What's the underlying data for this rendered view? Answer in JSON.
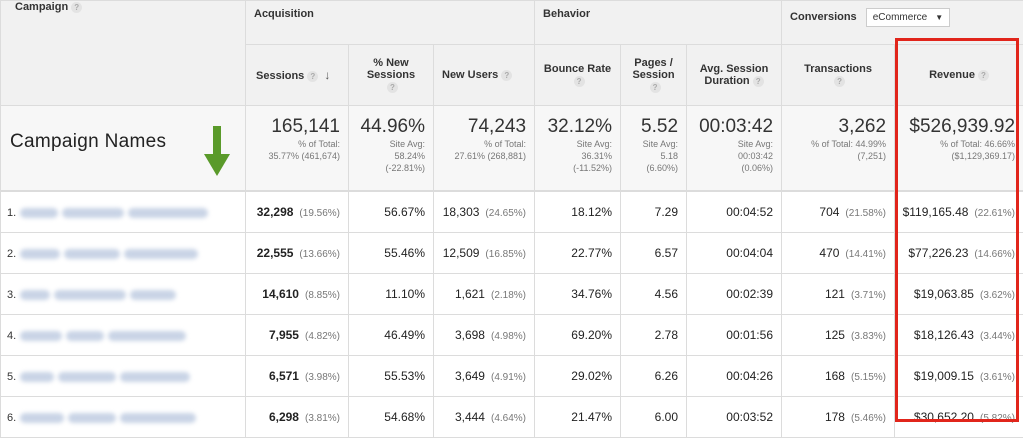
{
  "groups": {
    "acquisition": "Acquisition",
    "behavior": "Behavior",
    "conversions": "Conversions",
    "conversions_select": "eCommerce"
  },
  "headers": {
    "campaign": "Campaign",
    "sessions": "Sessions",
    "pct_new_sessions_1": "% New",
    "pct_new_sessions_2": "Sessions",
    "new_users": "New Users",
    "bounce_rate": "Bounce Rate",
    "pages_session_1": "Pages /",
    "pages_session_2": "Session",
    "avg_duration_1": "Avg. Session",
    "avg_duration_2": "Duration",
    "transactions": "Transactions",
    "revenue": "Revenue"
  },
  "annotation": "Campaign Names",
  "totals": {
    "sessions": {
      "value": "165,141",
      "sub1": "% of Total:",
      "sub2": "35.77% (461,674)"
    },
    "pct_new": {
      "value": "44.96%",
      "sub1": "Site Avg:",
      "sub2": "58.24%",
      "sub3": "(-22.81%)"
    },
    "new_users": {
      "value": "74,243",
      "sub1": "% of Total:",
      "sub2": "27.61% (268,881)"
    },
    "bounce": {
      "value": "32.12%",
      "sub1": "Site Avg:",
      "sub2": "36.31%",
      "sub3": "(-11.52%)"
    },
    "pages": {
      "value": "5.52",
      "sub1": "Site Avg:",
      "sub2": "5.18",
      "sub3": "(6.60%)"
    },
    "duration": {
      "value": "00:03:42",
      "sub1": "Site Avg:",
      "sub2": "00:03:42",
      "sub3": "(0.06%)"
    },
    "transactions": {
      "value": "3,262",
      "sub1": "% of Total: 44.99%",
      "sub2": "(7,251)"
    },
    "revenue": {
      "value": "$526,939.92",
      "sub1": "% of Total: 46.66%",
      "sub2": "($1,129,369.17)"
    }
  },
  "rows": [
    {
      "idx": "1.",
      "sessions": "32,298",
      "sessions_pct": "(19.56%)",
      "pct_new": "56.67%",
      "new_users": "18,303",
      "new_users_pct": "(24.65%)",
      "bounce": "18.12%",
      "pages": "7.29",
      "duration": "00:04:52",
      "transactions": "704",
      "transactions_pct": "(21.58%)",
      "revenue": "$119,165.48",
      "revenue_pct": "(22.61%)"
    },
    {
      "idx": "2.",
      "sessions": "22,555",
      "sessions_pct": "(13.66%)",
      "pct_new": "55.46%",
      "new_users": "12,509",
      "new_users_pct": "(16.85%)",
      "bounce": "22.77%",
      "pages": "6.57",
      "duration": "00:04:04",
      "transactions": "470",
      "transactions_pct": "(14.41%)",
      "revenue": "$77,226.23",
      "revenue_pct": "(14.66%)"
    },
    {
      "idx": "3.",
      "sessions": "14,610",
      "sessions_pct": "(8.85%)",
      "pct_new": "11.10%",
      "new_users": "1,621",
      "new_users_pct": "(2.18%)",
      "bounce": "34.76%",
      "pages": "4.56",
      "duration": "00:02:39",
      "transactions": "121",
      "transactions_pct": "(3.71%)",
      "revenue": "$19,063.85",
      "revenue_pct": "(3.62%)"
    },
    {
      "idx": "4.",
      "sessions": "7,955",
      "sessions_pct": "(4.82%)",
      "pct_new": "46.49%",
      "new_users": "3,698",
      "new_users_pct": "(4.98%)",
      "bounce": "69.20%",
      "pages": "2.78",
      "duration": "00:01:56",
      "transactions": "125",
      "transactions_pct": "(3.83%)",
      "revenue": "$18,126.43",
      "revenue_pct": "(3.44%)"
    },
    {
      "idx": "5.",
      "sessions": "6,571",
      "sessions_pct": "(3.98%)",
      "pct_new": "55.53%",
      "new_users": "3,649",
      "new_users_pct": "(4.91%)",
      "bounce": "29.02%",
      "pages": "6.26",
      "duration": "00:04:26",
      "transactions": "168",
      "transactions_pct": "(5.15%)",
      "revenue": "$19,009.15",
      "revenue_pct": "(3.61%)"
    },
    {
      "idx": "6.",
      "sessions": "6,298",
      "sessions_pct": "(3.81%)",
      "pct_new": "54.68%",
      "new_users": "3,444",
      "new_users_pct": "(4.64%)",
      "bounce": "21.47%",
      "pages": "6.00",
      "duration": "00:03:52",
      "transactions": "178",
      "transactions_pct": "(5.46%)",
      "revenue": "$30,652.20",
      "revenue_pct": "(5.82%)"
    }
  ],
  "icons": {
    "help": "?",
    "sort": "↓",
    "caret": "▼"
  },
  "colors": {
    "highlight": "#e1251b",
    "arrow": "#5a9a2a"
  }
}
